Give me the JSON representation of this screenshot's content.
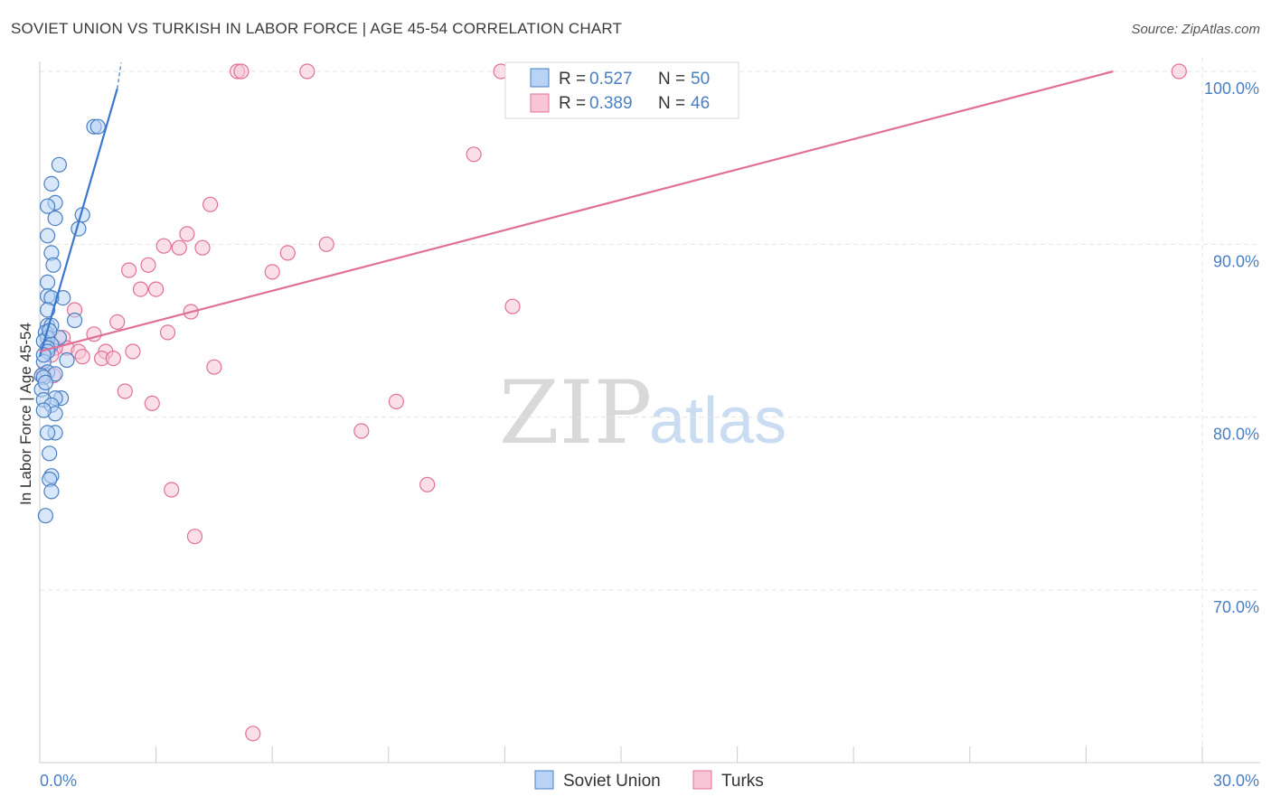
{
  "header": {
    "title": "SOVIET UNION VS TURKISH IN LABOR FORCE | AGE 45-54 CORRELATION CHART",
    "source": "Source: ZipAtlas.com"
  },
  "colors": {
    "blue": "#4a7fc1",
    "blue_fill": "#b8d3f5",
    "blue_line": "#3a78cc",
    "pink": "#e07098",
    "pink_fill": "#f7c5d6",
    "pink_line": "#e07098"
  },
  "legend": {
    "items": [
      {
        "r_label": "R = ",
        "r_value": "0.527",
        "n_label": "N = ",
        "n_value": "50"
      },
      {
        "r_label": "R = ",
        "r_value": "0.389",
        "n_label": "N = ",
        "n_value": "46"
      }
    ]
  },
  "bottom_legend": [
    "Soviet Union",
    "Turks"
  ],
  "watermark": {
    "zip": "ZIP",
    "atlas": "atlas"
  },
  "chart_data": {
    "type": "scatter",
    "title": "SOVIET UNION VS TURKISH IN LABOR FORCE | AGE 45-54 CORRELATION CHART",
    "xlabel": "",
    "ylabel": "In Labor Force | Age 45-54",
    "xlim": [
      0,
      30
    ],
    "ylim": [
      60,
      100
    ],
    "x_tick_labels": [
      "0.0%",
      "30.0%"
    ],
    "y_ticks": [
      70,
      80,
      90,
      100
    ],
    "y_tick_labels": [
      "70.0%",
      "80.0%",
      "90.0%",
      "100.0%"
    ],
    "grid": true,
    "legend_position": "top-center",
    "series": [
      {
        "name": "Soviet Union",
        "r": 0.527,
        "n": 50,
        "trend": {
          "x": [
            0.0,
            2.0
          ],
          "y": [
            83.5,
            99.0
          ],
          "dashed_extension_to": [
            2.1,
            100.5
          ]
        },
        "points": [
          [
            1.4,
            96.8
          ],
          [
            1.5,
            96.8
          ],
          [
            0.5,
            94.6
          ],
          [
            0.3,
            93.5
          ],
          [
            0.4,
            92.4
          ],
          [
            0.2,
            92.2
          ],
          [
            1.1,
            91.7
          ],
          [
            0.4,
            91.5
          ],
          [
            1.0,
            90.9
          ],
          [
            0.2,
            90.5
          ],
          [
            0.3,
            89.5
          ],
          [
            0.35,
            88.8
          ],
          [
            0.2,
            87.8
          ],
          [
            0.2,
            87.0
          ],
          [
            0.6,
            86.9
          ],
          [
            0.3,
            86.9
          ],
          [
            0.2,
            86.2
          ],
          [
            0.9,
            85.6
          ],
          [
            0.2,
            85.3
          ],
          [
            0.3,
            85.3
          ],
          [
            0.15,
            84.9
          ],
          [
            0.5,
            84.6
          ],
          [
            0.2,
            84.6
          ],
          [
            0.1,
            84.4
          ],
          [
            0.3,
            84.2
          ],
          [
            0.2,
            84.0
          ],
          [
            0.2,
            83.8
          ],
          [
            0.7,
            83.3
          ],
          [
            0.1,
            83.2
          ],
          [
            0.2,
            82.6
          ],
          [
            0.05,
            82.4
          ],
          [
            0.4,
            82.5
          ],
          [
            0.1,
            82.3
          ],
          [
            0.05,
            81.6
          ],
          [
            0.55,
            81.1
          ],
          [
            0.4,
            81.1
          ],
          [
            0.1,
            81.0
          ],
          [
            0.3,
            80.7
          ],
          [
            0.4,
            80.2
          ],
          [
            0.1,
            80.4
          ],
          [
            0.4,
            79.1
          ],
          [
            0.2,
            79.1
          ],
          [
            0.25,
            77.9
          ],
          [
            0.3,
            76.6
          ],
          [
            0.25,
            76.4
          ],
          [
            0.3,
            75.7
          ],
          [
            0.15,
            74.3
          ],
          [
            0.1,
            83.6
          ],
          [
            0.15,
            82.0
          ],
          [
            0.25,
            85.0
          ]
        ]
      },
      {
        "name": "Turks",
        "r": 0.389,
        "n": 46,
        "trend": {
          "x": [
            0.0,
            27.7
          ],
          "y": [
            83.8,
            100.0
          ]
        },
        "points": [
          [
            5.1,
            100.0
          ],
          [
            5.2,
            100.0
          ],
          [
            6.9,
            100.0
          ],
          [
            11.9,
            100.0
          ],
          [
            12.3,
            100.0
          ],
          [
            29.4,
            100.0
          ],
          [
            11.2,
            95.2
          ],
          [
            4.4,
            92.3
          ],
          [
            3.8,
            90.6
          ],
          [
            3.2,
            89.9
          ],
          [
            4.2,
            89.8
          ],
          [
            3.6,
            89.8
          ],
          [
            7.4,
            90.0
          ],
          [
            6.4,
            89.5
          ],
          [
            2.8,
            88.8
          ],
          [
            2.3,
            88.5
          ],
          [
            6.0,
            88.4
          ],
          [
            2.6,
            87.4
          ],
          [
            3.0,
            87.4
          ],
          [
            12.2,
            86.4
          ],
          [
            0.9,
            86.2
          ],
          [
            3.9,
            86.1
          ],
          [
            2.0,
            85.5
          ],
          [
            1.4,
            84.8
          ],
          [
            3.3,
            84.9
          ],
          [
            0.6,
            84.6
          ],
          [
            0.7,
            84.0
          ],
          [
            0.4,
            84.0
          ],
          [
            1.0,
            83.8
          ],
          [
            1.7,
            83.8
          ],
          [
            2.4,
            83.8
          ],
          [
            1.1,
            83.5
          ],
          [
            1.6,
            83.4
          ],
          [
            1.9,
            83.4
          ],
          [
            0.3,
            83.6
          ],
          [
            4.5,
            82.9
          ],
          [
            0.1,
            82.5
          ],
          [
            0.35,
            82.4
          ],
          [
            2.2,
            81.5
          ],
          [
            2.9,
            80.8
          ],
          [
            9.2,
            80.9
          ],
          [
            8.3,
            79.2
          ],
          [
            10.0,
            76.1
          ],
          [
            3.4,
            75.8
          ],
          [
            4.0,
            73.1
          ],
          [
            5.5,
            61.7
          ]
        ]
      }
    ]
  }
}
